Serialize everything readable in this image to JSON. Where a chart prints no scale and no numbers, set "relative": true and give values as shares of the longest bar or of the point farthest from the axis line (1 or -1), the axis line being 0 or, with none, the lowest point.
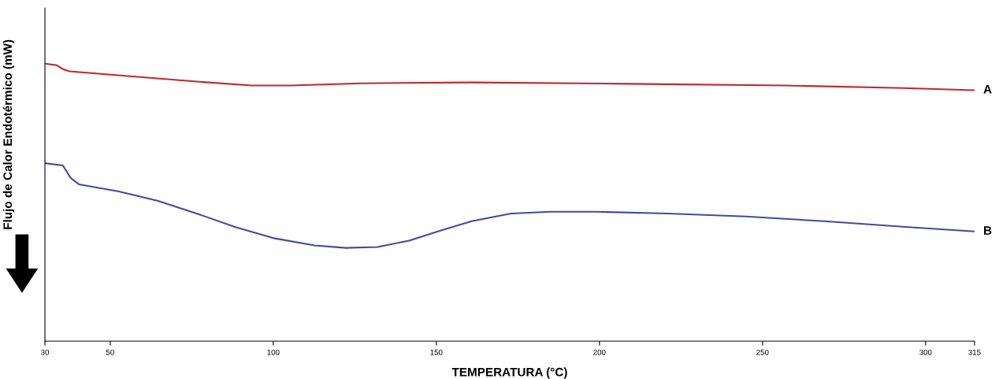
{
  "chart_data": {
    "type": "line",
    "relative": true,
    "xlabel": "TEMPERATURA (°C)",
    "ylabel": "Flujo de Calor Endotérmico (mW)",
    "xlim": [
      30,
      315
    ],
    "xticks": [
      30,
      50,
      100,
      150,
      200,
      250,
      300,
      315
    ],
    "grid": false,
    "legend": false,
    "marker": "none",
    "line_style": "solid",
    "series": [
      {
        "name": "A",
        "color": "#c0282d",
        "x": [
          30,
          33.6,
          35.5,
          37.5,
          52.4,
          76.5,
          93.4,
          105.4,
          127,
          160.8,
          209,
          257,
          293,
          315
        ],
        "values": [
          1.0,
          0.994,
          0.98,
          0.972,
          0.958,
          0.935,
          0.921,
          0.921,
          0.929,
          0.932,
          0.927,
          0.921,
          0.912,
          0.904
        ]
      },
      {
        "name": "B",
        "color": "#3f4c9c",
        "x": [
          30,
          35.5,
          37.9,
          40.4,
          52.4,
          64.5,
          76.5,
          88.6,
          100.6,
          112.7,
          122.3,
          131.9,
          141.6,
          151.2,
          160.8,
          172.9,
          185,
          199.4,
          221,
          245,
          269,
          293,
          315
        ],
        "values": [
          0.641,
          0.633,
          0.588,
          0.565,
          0.54,
          0.506,
          0.46,
          0.41,
          0.37,
          0.345,
          0.336,
          0.339,
          0.362,
          0.398,
          0.432,
          0.46,
          0.466,
          0.466,
          0.46,
          0.449,
          0.432,
          0.412,
          0.395
        ]
      }
    ]
  }
}
